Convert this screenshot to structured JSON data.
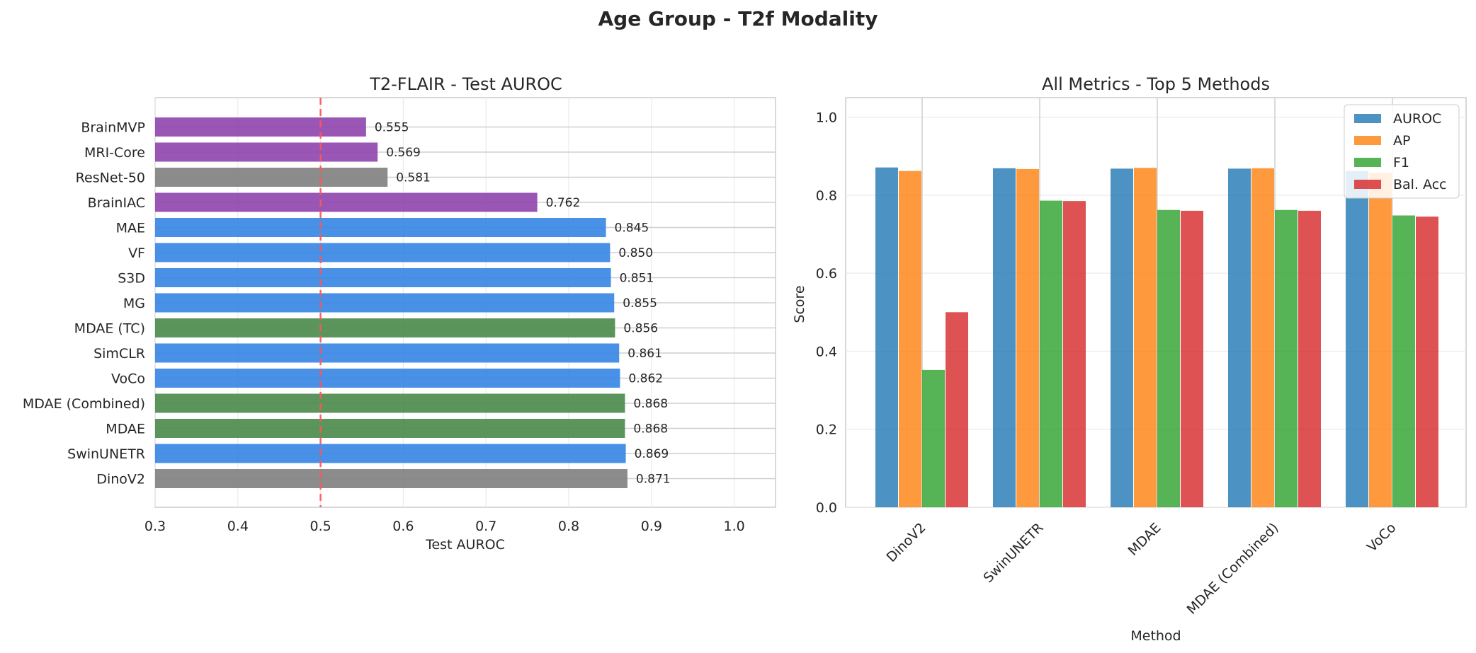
{
  "figure": {
    "suptitle": "Age Group - T2f Modality"
  },
  "chart_data": [
    {
      "type": "bar",
      "orientation": "horizontal",
      "title": "T2-FLAIR - Test AUROC",
      "xlabel": "Test AUROC",
      "ylabel": "",
      "xlim": [
        0.3,
        1.05
      ],
      "xticks": [
        "0.3",
        "0.4",
        "0.5",
        "0.6",
        "0.7",
        "0.8",
        "0.9",
        "1.0"
      ],
      "grid": true,
      "reference_line": {
        "value": 0.5,
        "style": "dashed",
        "color": "#ff5555"
      },
      "categories": [
        "BrainMVP",
        "MRI-Core",
        "ResNet-50",
        "BrainIAC",
        "MAE",
        "VF",
        "S3D",
        "MG",
        "MDAE (TC)",
        "SimCLR",
        "VoCo",
        "MDAE (Combined)",
        "MDAE",
        "SwinUNETR",
        "DinoV2"
      ],
      "values": [
        0.555,
        0.569,
        0.581,
        0.762,
        0.845,
        0.85,
        0.851,
        0.855,
        0.856,
        0.861,
        0.862,
        0.868,
        0.868,
        0.869,
        0.871
      ],
      "value_labels": [
        "0.555",
        "0.569",
        "0.581",
        "0.762",
        "0.845",
        "0.850",
        "0.851",
        "0.855",
        "0.856",
        "0.861",
        "0.862",
        "0.868",
        "0.868",
        "0.869",
        "0.871"
      ],
      "bar_colors": [
        "#8e44ad",
        "#8e44ad",
        "#7f7f7f",
        "#8e44ad",
        "#3584e4",
        "#3584e4",
        "#3584e4",
        "#3584e4",
        "#4a8a4a",
        "#3584e4",
        "#3584e4",
        "#4a8a4a",
        "#4a8a4a",
        "#3584e4",
        "#7f7f7f"
      ]
    },
    {
      "type": "bar",
      "orientation": "vertical",
      "title": "All Metrics - Top 5 Methods",
      "xlabel": "Method",
      "ylabel": "Score",
      "ylim": [
        0,
        1.05
      ],
      "yticks": [
        "0.0",
        "0.2",
        "0.4",
        "0.6",
        "0.8",
        "1.0"
      ],
      "grid": true,
      "legend_position": "top-right",
      "categories": [
        "DinoV2",
        "SwinUNETR",
        "MDAE",
        "MDAE (Combined)",
        "VoCo"
      ],
      "series": [
        {
          "name": "AUROC",
          "color": "#1f77b4",
          "values": [
            0.871,
            0.869,
            0.868,
            0.868,
            0.862
          ]
        },
        {
          "name": "AP",
          "color": "#ff7f0e",
          "values": [
            0.862,
            0.867,
            0.87,
            0.869,
            0.857
          ]
        },
        {
          "name": "F1",
          "color": "#2ca02c",
          "values": [
            0.352,
            0.786,
            0.762,
            0.762,
            0.748
          ]
        },
        {
          "name": "Bal. Acc",
          "color": "#d62728",
          "values": [
            0.5,
            0.785,
            0.76,
            0.76,
            0.745
          ]
        }
      ]
    }
  ]
}
